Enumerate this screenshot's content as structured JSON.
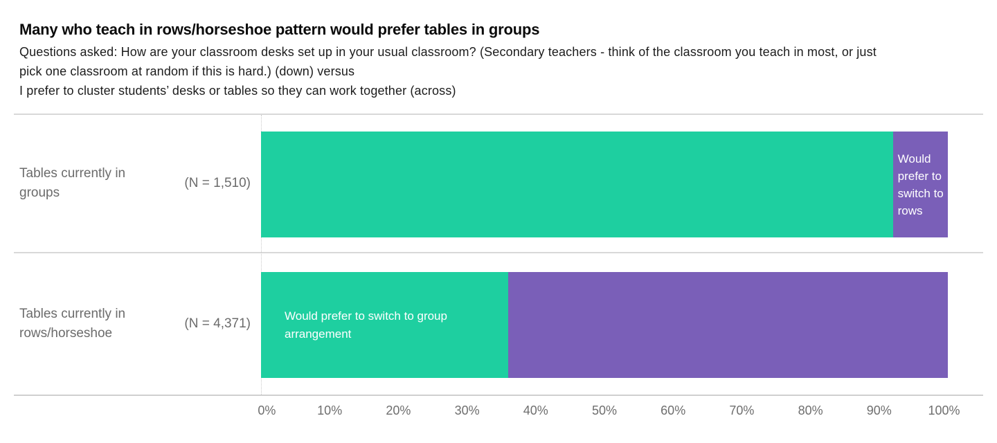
{
  "header": {
    "title": "Many who teach in rows/horseshoe pattern would prefer tables in groups",
    "subtitle_lines": [
      "Questions asked: How are your classroom desks set up in your usual classroom? (Secondary teachers - think of the classroom you teach in most, or just",
      "pick one classroom at random if this is hard.) (down) versus",
      "I prefer to cluster students’ desks or tables so they can work together (across)"
    ]
  },
  "chart_data": {
    "type": "bar",
    "orientation": "horizontal-stacked",
    "title": "Many who teach in rows/horseshoe pattern would prefer tables in groups",
    "categories": [
      "Tables currently in groups",
      "Tables currently in rows/horseshoe"
    ],
    "rows": [
      {
        "label": "Tables currently in groups",
        "n_label": "(N = 1,510)",
        "segments": [
          {
            "name": "prefer-group-arrangement",
            "value": 92,
            "color": "#1ECFA0",
            "text": ""
          },
          {
            "name": "prefer-switch-to-rows",
            "value": 8,
            "color": "#7A5FB8",
            "text": "Would prefer to switch to rows"
          }
        ]
      },
      {
        "label": "Tables currently in rows/horseshoe",
        "n_label": "(N = 4,371)",
        "segments": [
          {
            "name": "prefer-switch-to-group",
            "value": 36,
            "color": "#1ECFA0",
            "text": "Would prefer to switch to group arrangement"
          },
          {
            "name": "prefer-keep-rows",
            "value": 64,
            "color": "#7A5FB8",
            "text": ""
          }
        ]
      }
    ],
    "x_ticks": [
      "0%",
      "10%",
      "20%",
      "30%",
      "40%",
      "50%",
      "60%",
      "70%",
      "80%",
      "90%",
      "100%"
    ],
    "xlim": [
      0,
      100
    ],
    "legend": "none",
    "grid": "dotted vertical gridline at 0% only",
    "colors": {
      "group_arrangement_green": "#1ECFA0",
      "rows_purple": "#7A5FB8",
      "divider_gray": "#d8d8d8",
      "label_gray": "#6b6b6b",
      "axis_gray": "#6e6e6e"
    }
  }
}
